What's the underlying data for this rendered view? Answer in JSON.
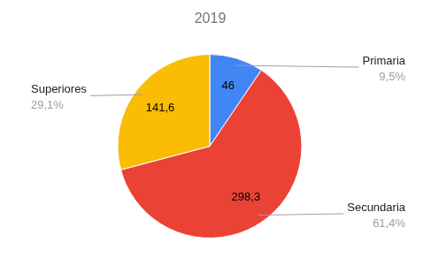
{
  "chart_data": {
    "type": "pie",
    "title": "2019",
    "categories": [
      "Primaria",
      "Secundaria",
      "Superiores"
    ],
    "values": [
      46,
      298.3,
      141.6
    ],
    "value_labels": [
      "46",
      "298,3",
      "141,6"
    ],
    "data_labels": true,
    "percentages": [
      9.5,
      61.4,
      29.1
    ],
    "percentage_labels": [
      "9,5%",
      "61,4%",
      "29,1%"
    ],
    "colors": [
      "#4285f4",
      "#ea4335",
      "#fbbc04"
    ]
  }
}
